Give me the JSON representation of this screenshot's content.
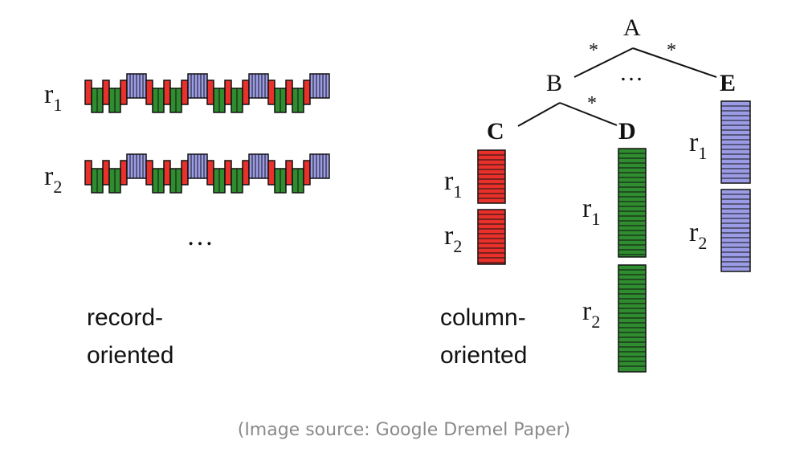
{
  "colors": {
    "C": "#e8312b",
    "D": "#2f8c2f",
    "E": "#9c9ce6"
  },
  "left": {
    "rows": [
      {
        "name": "r",
        "subscript": "1"
      },
      {
        "name": "r",
        "subscript": "2"
      }
    ],
    "ellipsis": "…",
    "label_line1": "record-",
    "label_line2": "oriented"
  },
  "right": {
    "nodes": {
      "A": "A",
      "B": "B",
      "C": "C",
      "D": "D",
      "E": "E"
    },
    "stars": [
      "*",
      "*",
      "*"
    ],
    "tree_ellipsis": "…",
    "column_labels": [
      {
        "name": "r",
        "subscript": "1"
      },
      {
        "name": "r",
        "subscript": "2"
      }
    ],
    "label_line1": "column-",
    "label_line2": "oriented"
  },
  "caption": "(Image source: Google Dremel Paper)"
}
